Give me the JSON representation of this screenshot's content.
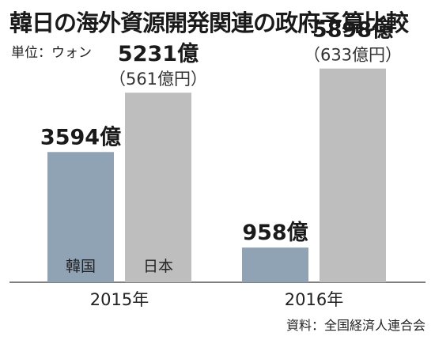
{
  "title": "韓日の海外資源開発関連の政府予算比較",
  "unit_label": "単位：ウォン",
  "source": "資料：全国経済人連合会",
  "colors": {
    "korea": "#8fa3b4",
    "japan": "#bebebe",
    "axis": "#555555"
  },
  "chart_data": {
    "type": "bar",
    "categories": [
      "2015年",
      "2016年"
    ],
    "series": [
      {
        "name": "韓国",
        "values": [
          3594,
          958
        ],
        "value_labels": [
          "3594億",
          "958億"
        ]
      },
      {
        "name": "日本",
        "values": [
          5231,
          5898
        ],
        "value_labels": [
          "5231億",
          "5898億"
        ],
        "sub_labels": [
          "（561億円）",
          "（633億円）"
        ]
      }
    ],
    "title": "韓日の海外資源開発関連の政府予算比較",
    "ylabel": "",
    "ylim": [
      0,
      6000
    ],
    "legend": "in-bar"
  }
}
